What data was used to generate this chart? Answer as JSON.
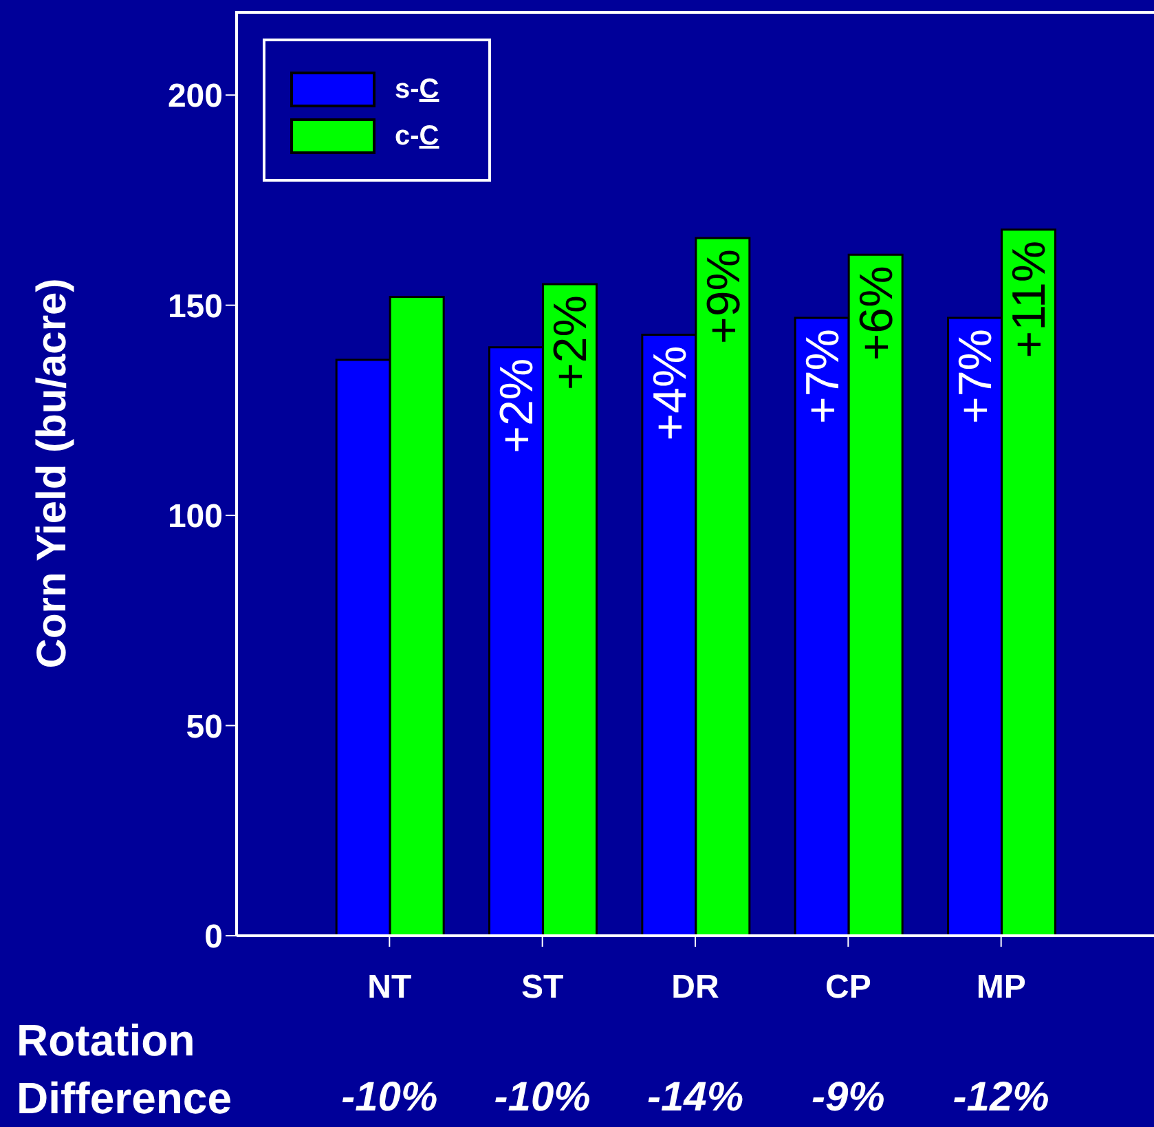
{
  "chart_data": {
    "type": "bar",
    "ylabel": "Corn Yield (bu/acre)",
    "categories": [
      "NT",
      "ST",
      "DR",
      "CP",
      "MP"
    ],
    "series": [
      {
        "name": "s-C",
        "color": "#0000ff",
        "values": [
          137,
          140,
          143,
          147,
          147
        ]
      },
      {
        "name": "c-C",
        "color": "#00ff00",
        "values": [
          152,
          155,
          166,
          162,
          168
        ]
      }
    ],
    "ylim": [
      0,
      220
    ],
    "yticks": [
      0,
      50,
      100,
      150,
      200
    ],
    "grid": false,
    "legend": "top left",
    "annotations": [
      "Rotation",
      "Difference",
      "-10%",
      "-10%",
      "-14%",
      "-9%",
      "-12%",
      {
        "text": "+2%",
        "x": "ST",
        "y": 140
      },
      {
        "text": "+4%",
        "x": "DR",
        "y": 143
      },
      {
        "text": "+7%",
        "x": "CP",
        "y": 147
      },
      {
        "text": "+7%",
        "x": "MP",
        "y": 147
      },
      {
        "text": "+2%",
        "x": "ST",
        "y": 155
      },
      {
        "text": "+9%",
        "x": "DR",
        "y": 166
      },
      {
        "text": "+6%",
        "x": "CP",
        "y": 162
      },
      {
        "text": "+11%",
        "x": "MP",
        "y": 168
      }
    ]
  }
}
